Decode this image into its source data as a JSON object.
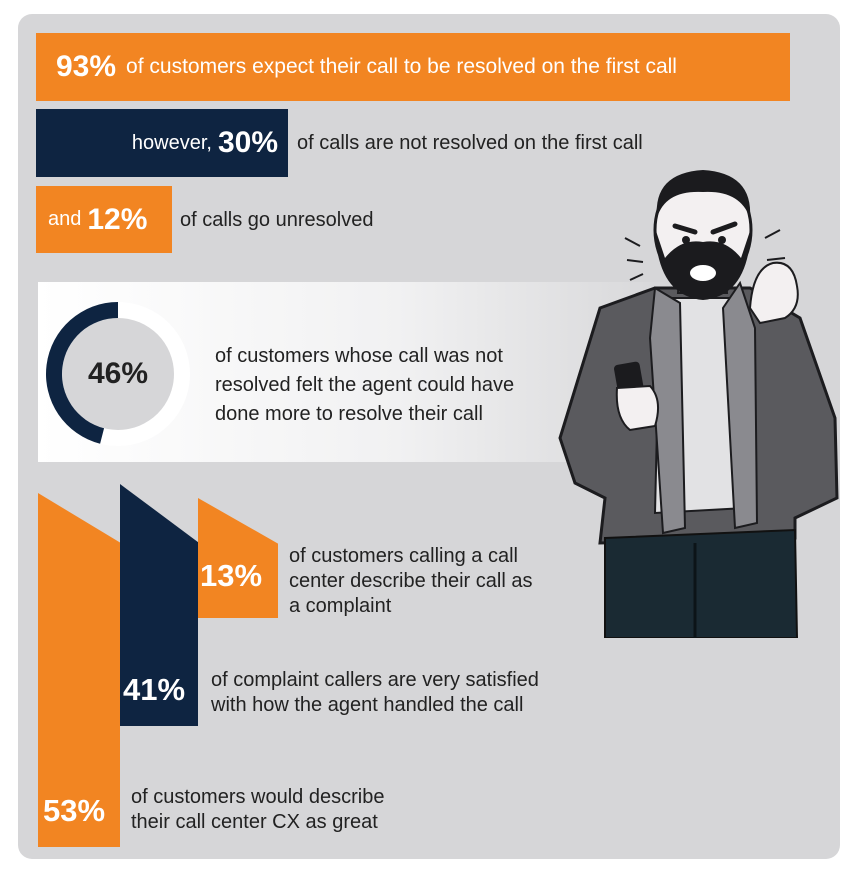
{
  "stats": {
    "stat1": {
      "value": "93%",
      "text": "of customers expect their call to be resolved on the first call"
    },
    "stat2": {
      "prefix": "however,",
      "value": "30%",
      "text": "of calls are not resolved on the first call"
    },
    "stat3": {
      "prefix": "and",
      "value": "12%",
      "text": "of calls go unresolved"
    },
    "stat4": {
      "value": "46%",
      "fraction": 0.46,
      "lines": [
        "of customers whose call was not",
        "resolved felt the agent could have",
        "done more to resolve their call"
      ]
    },
    "stat5": {
      "value": "13%",
      "lines": [
        "of customers calling a call",
        "center describe their call as",
        "a complaint"
      ]
    },
    "stat6": {
      "value": "41%",
      "lines": [
        "of complaint callers are very satisfied",
        "with how the agent handled the call"
      ]
    },
    "stat7": {
      "value": "53%",
      "lines": [
        "of customers would describe",
        "their call center CX as great"
      ]
    }
  },
  "colors": {
    "orange": "#f28522",
    "navy": "#0e2441",
    "panel": "#d6d6d8",
    "text": "#222222"
  },
  "illustration": {
    "icon": "frustrated-man-with-phone-icon"
  }
}
